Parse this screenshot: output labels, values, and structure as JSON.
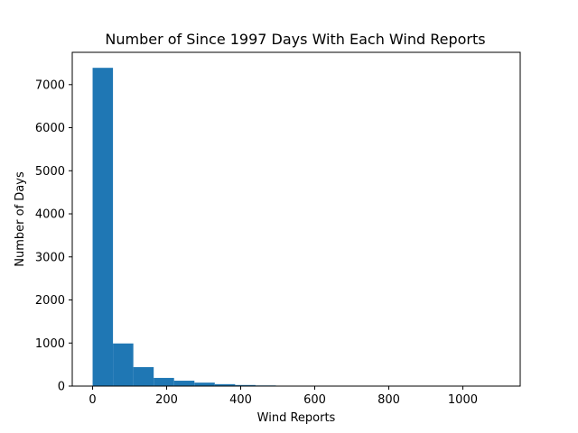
{
  "chart_data": {
    "type": "bar",
    "title": "Number of Since 1997 Days With Each Wind Reports",
    "xlabel": "Wind Reports",
    "ylabel": "Number of Days",
    "xlim": [
      -55,
      1155
    ],
    "ylim": [
      0,
      7750
    ],
    "xticks": [
      0,
      200,
      400,
      600,
      800,
      1000
    ],
    "yticks": [
      0,
      1000,
      2000,
      3000,
      4000,
      5000,
      6000,
      7000
    ],
    "bin_width": 55,
    "bins": [
      {
        "x0": 0,
        "x1": 55,
        "count": 7390
      },
      {
        "x0": 55,
        "x1": 110,
        "count": 990
      },
      {
        "x0": 110,
        "x1": 165,
        "count": 440
      },
      {
        "x0": 165,
        "x1": 220,
        "count": 190
      },
      {
        "x0": 220,
        "x1": 275,
        "count": 125
      },
      {
        "x0": 275,
        "x1": 330,
        "count": 80
      },
      {
        "x0": 330,
        "x1": 385,
        "count": 45
      },
      {
        "x0": 385,
        "x1": 440,
        "count": 25
      },
      {
        "x0": 440,
        "x1": 495,
        "count": 15
      },
      {
        "x0": 495,
        "x1": 550,
        "count": 6
      },
      {
        "x0": 550,
        "x1": 605,
        "count": 4
      },
      {
        "x0": 605,
        "x1": 660,
        "count": 2
      },
      {
        "x0": 660,
        "x1": 715,
        "count": 1
      },
      {
        "x0": 715,
        "x1": 770,
        "count": 1
      },
      {
        "x0": 770,
        "x1": 825,
        "count": 0
      },
      {
        "x0": 825,
        "x1": 880,
        "count": 0
      },
      {
        "x0": 880,
        "x1": 935,
        "count": 0
      },
      {
        "x0": 935,
        "x1": 990,
        "count": 0
      },
      {
        "x0": 990,
        "x1": 1045,
        "count": 0
      },
      {
        "x0": 1045,
        "x1": 1100,
        "count": 1
      }
    ],
    "bar_color": "#1f77b4",
    "grid": false,
    "legend": false
  }
}
